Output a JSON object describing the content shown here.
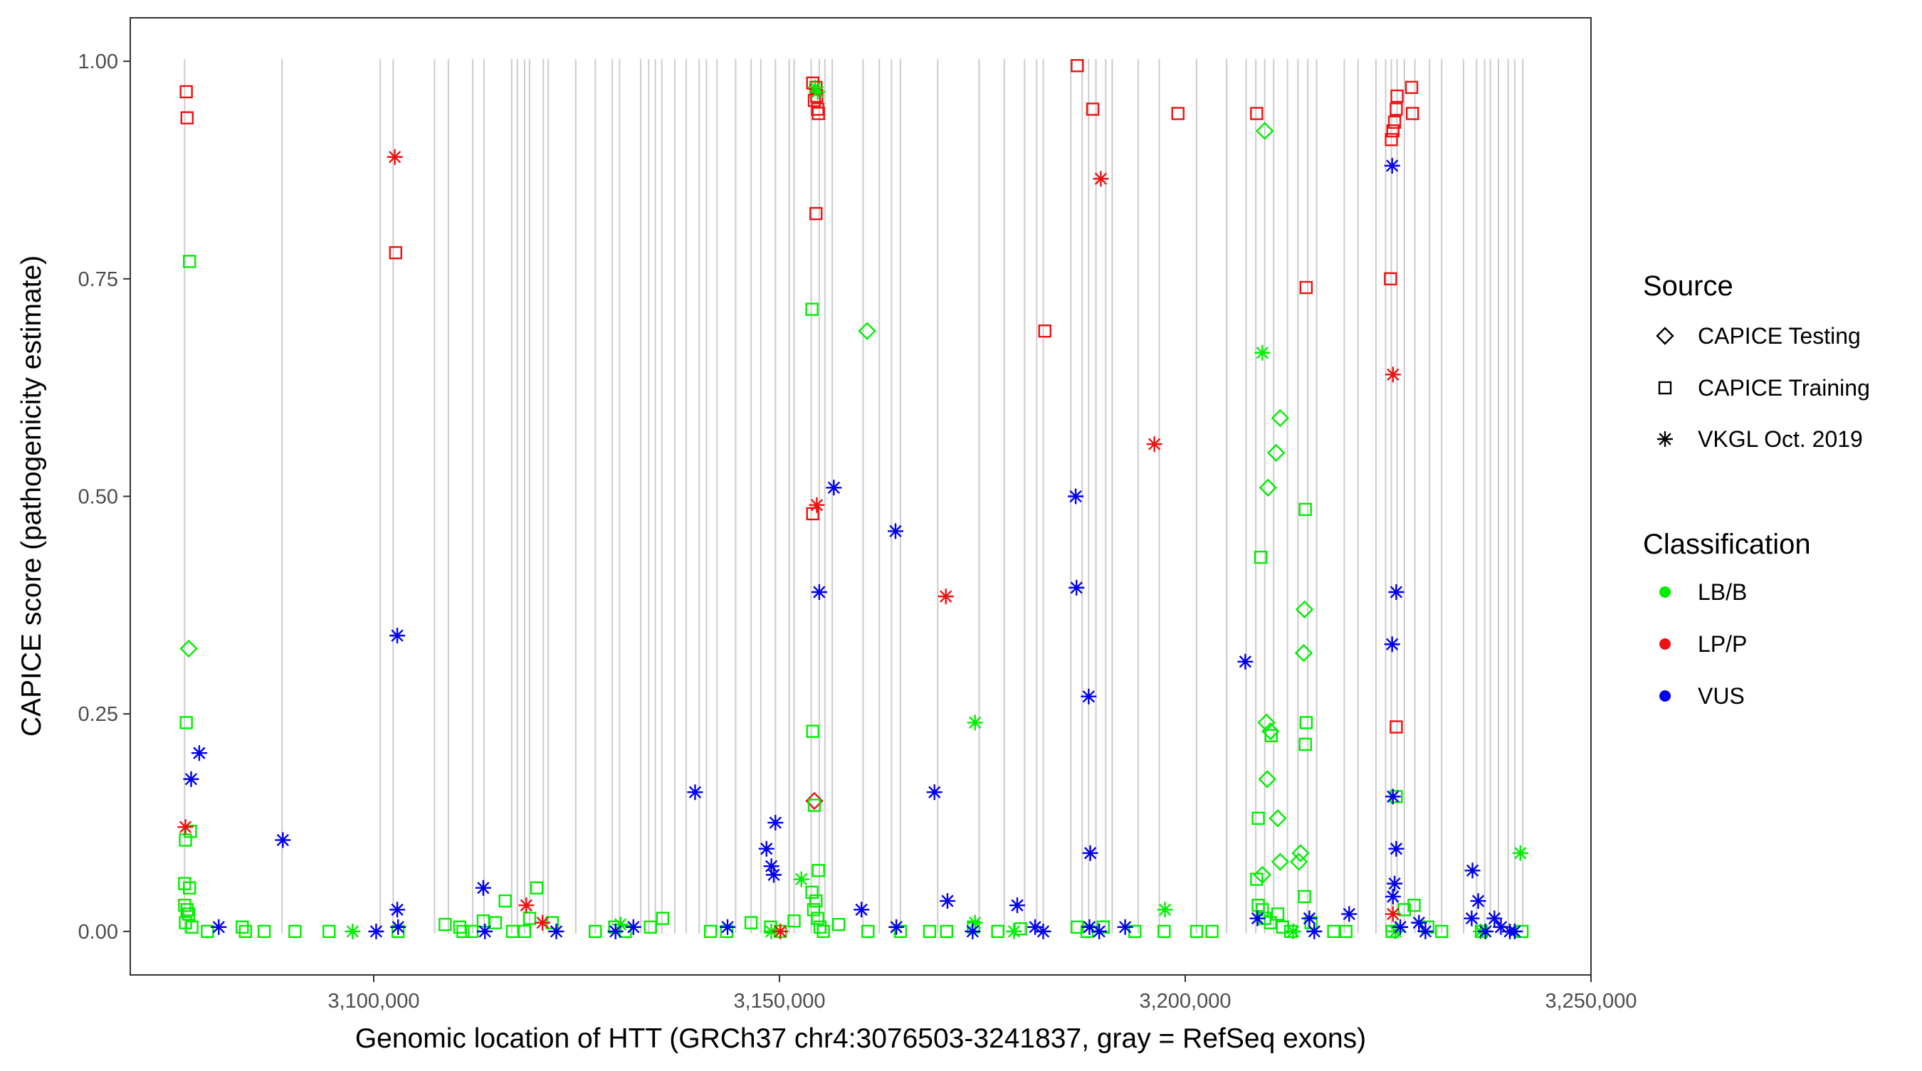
{
  "chart_data": {
    "type": "scatter",
    "title": "",
    "xlabel": "Genomic location of HTT (GRCh37 chr4:3076503-3241837, gray = RefSeq exons)",
    "ylabel": "CAPICE score (pathogenicity estimate)",
    "xlim": [
      3070000,
      3250000
    ],
    "ylim": [
      -0.05,
      1.05
    ],
    "x_ticks": [
      3100000,
      3150000,
      3200000,
      3250000
    ],
    "x_tick_labels": [
      "3,100,000",
      "3,150,000",
      "3,200,000",
      "3,250,000"
    ],
    "y_ticks": [
      0,
      0.25,
      0.5,
      0.75,
      1.0
    ],
    "y_tick_labels": [
      "0.00",
      "0.25",
      "0.50",
      "0.75",
      "1.00"
    ],
    "exon_positions": [
      3076700,
      3088700,
      3100800,
      3102400,
      3107500,
      3109200,
      3112200,
      3113600,
      3117000,
      3117700,
      3118600,
      3119200,
      3120900,
      3121500,
      3124900,
      3127300,
      3129400,
      3130300,
      3132900,
      3133900,
      3134700,
      3135500,
      3137100,
      3138500,
      3140100,
      3141000,
      3142300,
      3144600,
      3146500,
      3147700,
      3149500,
      3151200,
      3151800,
      3153900,
      3154900,
      3155600,
      3156500,
      3160300,
      3162300,
      3163800,
      3164900,
      3169500,
      3174600,
      3177700,
      3180200,
      3181700,
      3182500,
      3185900,
      3187300,
      3188100,
      3189000,
      3190200,
      3191000,
      3194200,
      3196800,
      3201400,
      3205100,
      3207500,
      3208700,
      3209800,
      3210900,
      3212600,
      3213900,
      3215100,
      3216200,
      3219600,
      3221300,
      3223500,
      3224700,
      3225400,
      3226100,
      3227000,
      3228300,
      3230100,
      3231600,
      3234300,
      3235900,
      3236900,
      3237600,
      3238600,
      3239800,
      3240600,
      3241600
    ],
    "legend": {
      "source_title": "Source",
      "source_items": [
        {
          "label": "CAPICE Testing",
          "shape": "diamond"
        },
        {
          "label": "CAPICE Training",
          "shape": "square"
        },
        {
          "label": "VKGL Oct. 2019",
          "shape": "asterisk"
        }
      ],
      "class_title": "Classification",
      "class_items": [
        {
          "label": "LB/B",
          "key": "lbb"
        },
        {
          "label": "LP/P",
          "key": "lpp"
        },
        {
          "label": "VUS",
          "key": "vus"
        }
      ],
      "placement": "right"
    },
    "colors": {
      "lbb": "#00ee00",
      "lpp": "#ee1111",
      "vus": "#0000ee",
      "exon": "#cccccc",
      "axis": "#333333"
    },
    "series": [
      {
        "name": "CAPICE Testing LB/B",
        "source": "diamond",
        "class": "lbb",
        "points": [
          [
            3077200,
            0.325
          ],
          [
            3160800,
            0.69
          ],
          [
            3209800,
            0.92
          ],
          [
            3210200,
            0.51
          ],
          [
            3211200,
            0.55
          ],
          [
            3211700,
            0.59
          ],
          [
            3210000,
            0.24
          ],
          [
            3210500,
            0.23
          ],
          [
            3210100,
            0.175
          ],
          [
            3211400,
            0.13
          ],
          [
            3214700,
            0.37
          ],
          [
            3214600,
            0.32
          ],
          [
            3214200,
            0.09
          ],
          [
            3214000,
            0.08
          ],
          [
            3211700,
            0.08
          ],
          [
            3209500,
            0.065
          ]
        ]
      },
      {
        "name": "CAPICE Testing LP/P",
        "source": "diamond",
        "class": "lpp",
        "points": [
          [
            3154300,
            0.15
          ]
        ]
      },
      {
        "name": "CAPICE Training LP/P",
        "source": "square",
        "class": "lpp",
        "points": [
          [
            3076900,
            0.965
          ],
          [
            3077000,
            0.935
          ],
          [
            3102700,
            0.78
          ],
          [
            3154100,
            0.975
          ],
          [
            3154500,
            0.97
          ],
          [
            3154300,
            0.955
          ],
          [
            3154600,
            0.96
          ],
          [
            3154700,
            0.945
          ],
          [
            3154800,
            0.94
          ],
          [
            3154500,
            0.825
          ],
          [
            3154100,
            0.48
          ],
          [
            3186700,
            0.995
          ],
          [
            3188600,
            0.945
          ],
          [
            3182700,
            0.69
          ],
          [
            3199100,
            0.94
          ],
          [
            3208800,
            0.94
          ],
          [
            3214900,
            0.74
          ],
          [
            3225300,
            0.75
          ],
          [
            3225400,
            0.91
          ],
          [
            3225600,
            0.92
          ],
          [
            3225800,
            0.93
          ],
          [
            3226000,
            0.945
          ],
          [
            3226100,
            0.96
          ],
          [
            3227900,
            0.97
          ],
          [
            3228000,
            0.94
          ],
          [
            3226000,
            0.235
          ]
        ]
      },
      {
        "name": "CAPICE Training LB/B",
        "source": "square",
        "class": "lbb",
        "points": [
          [
            3077300,
            0.77
          ],
          [
            3076900,
            0.24
          ],
          [
            3077400,
            0.115
          ],
          [
            3076800,
            0.105
          ],
          [
            3076700,
            0.055
          ],
          [
            3077300,
            0.05
          ],
          [
            3076700,
            0.03
          ],
          [
            3077000,
            0.025
          ],
          [
            3077200,
            0.02
          ],
          [
            3076800,
            0.01
          ],
          [
            3077600,
            0.005
          ],
          [
            3079500,
            0.0
          ],
          [
            3083800,
            0.005
          ],
          [
            3084200,
            0.0
          ],
          [
            3086500,
            0.0
          ],
          [
            3090300,
            0.0
          ],
          [
            3094500,
            0.0
          ],
          [
            3103000,
            0.0
          ],
          [
            3108800,
            0.008
          ],
          [
            3110600,
            0.005
          ],
          [
            3111000,
            0.0
          ],
          [
            3112100,
            0.0
          ],
          [
            3113500,
            0.012
          ],
          [
            3115000,
            0.01
          ],
          [
            3116200,
            0.035
          ],
          [
            3117100,
            0.0
          ],
          [
            3118600,
            0.0
          ],
          [
            3119200,
            0.015
          ],
          [
            3120100,
            0.05
          ],
          [
            3122000,
            0.01
          ],
          [
            3127300,
            0.0
          ],
          [
            3129700,
            0.005
          ],
          [
            3131000,
            0.0
          ],
          [
            3134100,
            0.005
          ],
          [
            3135600,
            0.015
          ],
          [
            3141500,
            0.0
          ],
          [
            3143500,
            0.0
          ],
          [
            3146500,
            0.01
          ],
          [
            3148900,
            0.005
          ],
          [
            3150100,
            0.0
          ],
          [
            3151800,
            0.012
          ],
          [
            3154000,
            0.715
          ],
          [
            3154100,
            0.23
          ],
          [
            3154300,
            0.145
          ],
          [
            3154800,
            0.07
          ],
          [
            3154000,
            0.045
          ],
          [
            3154500,
            0.035
          ],
          [
            3154200,
            0.025
          ],
          [
            3154700,
            0.015
          ],
          [
            3155000,
            0.005
          ],
          [
            3155400,
            0.0
          ],
          [
            3157300,
            0.008
          ],
          [
            3160900,
            0.0
          ],
          [
            3164900,
            0.0
          ],
          [
            3168500,
            0.0
          ],
          [
            3170600,
            0.0
          ],
          [
            3173900,
            0.005
          ],
          [
            3176900,
            0.0
          ],
          [
            3179700,
            0.003
          ],
          [
            3186700,
            0.005
          ],
          [
            3187900,
            0.0
          ],
          [
            3189900,
            0.005
          ],
          [
            3193800,
            0.0
          ],
          [
            3197400,
            0.0
          ],
          [
            3201400,
            0.0
          ],
          [
            3203300,
            0.0
          ],
          [
            3208800,
            0.06
          ],
          [
            3209000,
            0.13
          ],
          [
            3209300,
            0.43
          ],
          [
            3209000,
            0.03
          ],
          [
            3209500,
            0.025
          ],
          [
            3209800,
            0.015
          ],
          [
            3210500,
            0.01
          ],
          [
            3211400,
            0.02
          ],
          [
            3212000,
            0.005
          ],
          [
            3213000,
            0.0
          ],
          [
            3214800,
            0.485
          ],
          [
            3214900,
            0.24
          ],
          [
            3214800,
            0.215
          ],
          [
            3210600,
            0.225
          ],
          [
            3214700,
            0.04
          ],
          [
            3215500,
            0.01
          ],
          [
            3218300,
            0.0
          ],
          [
            3219800,
            0.0
          ],
          [
            3225500,
            0.0
          ],
          [
            3226000,
            0.155
          ],
          [
            3227000,
            0.025
          ],
          [
            3228200,
            0.03
          ],
          [
            3229900,
            0.005
          ],
          [
            3231600,
            0.0
          ],
          [
            3236500,
            0.0
          ],
          [
            3241500,
            0.0
          ]
        ]
      },
      {
        "name": "VKGL Oct. 2019 LB/B",
        "source": "asterisk",
        "class": "lbb",
        "points": [
          [
            3097400,
            0.0
          ],
          [
            3130400,
            0.008
          ],
          [
            3149000,
            0.0
          ],
          [
            3152700,
            0.06
          ],
          [
            3154400,
            0.97
          ],
          [
            3154700,
            0.965
          ],
          [
            3174100,
            0.24
          ],
          [
            3178900,
            0.0
          ],
          [
            3197500,
            0.025
          ],
          [
            3174100,
            0.01
          ],
          [
            3209500,
            0.665
          ],
          [
            3213300,
            0.0
          ],
          [
            3225900,
            0.0
          ],
          [
            3241300,
            0.09
          ],
          [
            3236400,
            0.0
          ]
        ]
      },
      {
        "name": "VKGL Oct. 2019 LP/P",
        "source": "asterisk",
        "class": "lpp",
        "points": [
          [
            3076800,
            0.12
          ],
          [
            3102600,
            0.89
          ],
          [
            3118800,
            0.03
          ],
          [
            3120800,
            0.01
          ],
          [
            3150100,
            0.0
          ],
          [
            3154600,
            0.49
          ],
          [
            3170500,
            0.385
          ],
          [
            3189600,
            0.865
          ],
          [
            3196200,
            0.56
          ],
          [
            3225600,
            0.64
          ],
          [
            3225600,
            0.02
          ]
        ]
      },
      {
        "name": "VKGL Oct. 2019 VUS",
        "source": "asterisk",
        "class": "vus",
        "points": [
          [
            3077500,
            0.175
          ],
          [
            3078500,
            0.205
          ],
          [
            3080900,
            0.005
          ],
          [
            3088800,
            0.105
          ],
          [
            3100300,
            0.0
          ],
          [
            3102900,
            0.34
          ],
          [
            3102900,
            0.025
          ],
          [
            3103000,
            0.005
          ],
          [
            3113500,
            0.05
          ],
          [
            3113700,
            0.0
          ],
          [
            3122500,
            0.0
          ],
          [
            3129800,
            0.0
          ],
          [
            3132000,
            0.005
          ],
          [
            3139600,
            0.16
          ],
          [
            3143600,
            0.005
          ],
          [
            3148400,
            0.095
          ],
          [
            3149000,
            0.075
          ],
          [
            3149300,
            0.065
          ],
          [
            3149500,
            0.125
          ],
          [
            3154900,
            0.39
          ],
          [
            3156700,
            0.51
          ],
          [
            3160100,
            0.025
          ],
          [
            3164300,
            0.46
          ],
          [
            3164400,
            0.005
          ],
          [
            3169100,
            0.16
          ],
          [
            3170700,
            0.035
          ],
          [
            3173800,
            0.0
          ],
          [
            3179300,
            0.03
          ],
          [
            3181500,
            0.005
          ],
          [
            3182500,
            0.0
          ],
          [
            3186500,
            0.5
          ],
          [
            3186600,
            0.395
          ],
          [
            3188100,
            0.27
          ],
          [
            3188300,
            0.09
          ],
          [
            3188200,
            0.005
          ],
          [
            3189400,
            0.0
          ],
          [
            3192600,
            0.005
          ],
          [
            3207400,
            0.31
          ],
          [
            3208900,
            0.015
          ],
          [
            3215300,
            0.015
          ],
          [
            3215900,
            0.0
          ],
          [
            3220200,
            0.02
          ],
          [
            3225500,
            0.88
          ],
          [
            3225500,
            0.33
          ],
          [
            3225600,
            0.155
          ],
          [
            3226000,
            0.39
          ],
          [
            3226000,
            0.095
          ],
          [
            3225800,
            0.055
          ],
          [
            3225600,
            0.04
          ],
          [
            3226500,
            0.005
          ],
          [
            3228800,
            0.01
          ],
          [
            3229600,
            0.0
          ],
          [
            3235400,
            0.07
          ],
          [
            3235300,
            0.015
          ],
          [
            3236100,
            0.035
          ],
          [
            3237000,
            0.0
          ],
          [
            3238100,
            0.015
          ],
          [
            3238900,
            0.005
          ],
          [
            3240000,
            0.0
          ],
          [
            3240600,
            0.0
          ]
        ]
      }
    ]
  }
}
